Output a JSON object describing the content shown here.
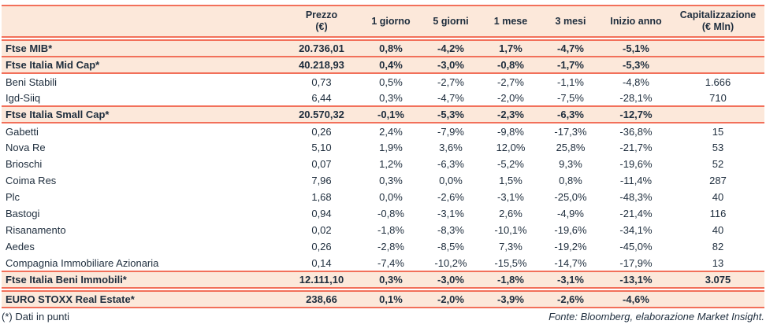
{
  "colors": {
    "accent": "#f2705a",
    "row_band": "#fce8da",
    "text": "#1e2d3d"
  },
  "table": {
    "columns": [
      {
        "label": ""
      },
      {
        "label": "Prezzo\n(€)"
      },
      {
        "label": "1 giorno"
      },
      {
        "label": "5 giorni"
      },
      {
        "label": "1 mese"
      },
      {
        "label": "3 mesi"
      },
      {
        "label": "Inizio anno"
      },
      {
        "label": "Capitalizzazione\n(€ Mln)"
      }
    ],
    "rows": [
      {
        "label": "Ftse MIB*",
        "values": [
          "20.736,01",
          "0,8%",
          "-4,2%",
          "1,7%",
          "-4,7%",
          "-5,1%",
          ""
        ],
        "variant": "index",
        "rule_below": "single"
      },
      {
        "label": "Ftse Italia Mid Cap*",
        "values": [
          "40.218,93",
          "0,4%",
          "-3,0%",
          "-0,8%",
          "-1,7%",
          "-5,3%",
          ""
        ],
        "variant": "index",
        "rule_below": "single"
      },
      {
        "label": "Beni Stabili",
        "values": [
          "0,73",
          "0,5%",
          "-2,7%",
          "-2,7%",
          "-1,1%",
          "-4,8%",
          "1.666"
        ],
        "variant": "stock",
        "rule_below": "none"
      },
      {
        "label": "Igd-Siiq",
        "values": [
          "6,44",
          "0,3%",
          "-4,7%",
          "-2,0%",
          "-7,5%",
          "-28,1%",
          "710"
        ],
        "variant": "stock",
        "rule_below": "single"
      },
      {
        "label": "Ftse Italia Small Cap*",
        "values": [
          "20.570,32",
          "-0,1%",
          "-5,3%",
          "-2,3%",
          "-6,3%",
          "-12,7%",
          ""
        ],
        "variant": "index",
        "rule_below": "single"
      },
      {
        "label": "Gabetti",
        "values": [
          "0,26",
          "2,4%",
          "-7,9%",
          "-9,8%",
          "-17,3%",
          "-36,8%",
          "15"
        ],
        "variant": "stock",
        "rule_below": "none"
      },
      {
        "label": "Nova Re",
        "values": [
          "5,10",
          "1,9%",
          "3,6%",
          "12,0%",
          "25,8%",
          "-21,7%",
          "53"
        ],
        "variant": "stock",
        "rule_below": "none"
      },
      {
        "label": "Brioschi",
        "values": [
          "0,07",
          "1,2%",
          "-6,3%",
          "-5,2%",
          "9,3%",
          "-19,6%",
          "52"
        ],
        "variant": "stock",
        "rule_below": "none"
      },
      {
        "label": "Coima Res",
        "values": [
          "7,96",
          "0,3%",
          "0,0%",
          "1,5%",
          "0,8%",
          "-11,4%",
          "287"
        ],
        "variant": "stock",
        "rule_below": "none"
      },
      {
        "label": "Plc",
        "values": [
          "1,68",
          "0,0%",
          "-2,6%",
          "-3,1%",
          "-25,0%",
          "-48,3%",
          "40"
        ],
        "variant": "stock",
        "rule_below": "none"
      },
      {
        "label": "Bastogi",
        "values": [
          "0,94",
          "-0,8%",
          "-3,1%",
          "2,6%",
          "-4,9%",
          "-21,4%",
          "116"
        ],
        "variant": "stock",
        "rule_below": "none"
      },
      {
        "label": "Risanamento",
        "values": [
          "0,02",
          "-1,8%",
          "-8,3%",
          "-10,1%",
          "-19,6%",
          "-34,1%",
          "40"
        ],
        "variant": "stock",
        "rule_below": "none"
      },
      {
        "label": "Aedes",
        "values": [
          "0,26",
          "-2,8%",
          "-8,5%",
          "7,3%",
          "-19,2%",
          "-45,0%",
          "82"
        ],
        "variant": "stock",
        "rule_below": "none"
      },
      {
        "label": "Compagnia Immobiliare Azionaria",
        "values": [
          "0,14",
          "-7,4%",
          "-10,2%",
          "-15,5%",
          "-14,7%",
          "-17,9%",
          "13"
        ],
        "variant": "stock",
        "rule_below": "single"
      },
      {
        "label": "Ftse Italia Beni Immobili*",
        "values": [
          "12.111,10",
          "0,3%",
          "-3,0%",
          "-1,8%",
          "-3,1%",
          "-13,1%",
          "3.075"
        ],
        "variant": "index",
        "rule_below": "double"
      },
      {
        "label": "EURO STOXX Real Estate*",
        "values": [
          "238,66",
          "0,1%",
          "-2,0%",
          "-3,9%",
          "-2,6%",
          "-4,6%",
          ""
        ],
        "variant": "index",
        "rule_below": "single"
      }
    ]
  },
  "footer": {
    "note": "(*) Dati in punti",
    "source": "Fonte: Bloomberg, elaborazione Market Insight."
  }
}
